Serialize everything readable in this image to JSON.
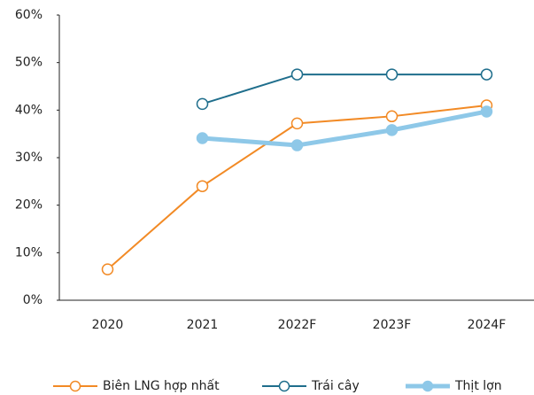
{
  "chart_data": {
    "type": "line",
    "categories": [
      "2020",
      "2021",
      "2022F",
      "2023F",
      "2024F"
    ],
    "series": [
      {
        "name": "Biên LNG hợp nhất",
        "color": "#f28a25",
        "marker_fill": "#ffffff",
        "line_width": 2,
        "values": [
          6.5,
          24.0,
          37.2,
          38.7,
          41.0
        ]
      },
      {
        "name": "Trái cây",
        "color": "#1f6e8c",
        "marker_fill": "#ffffff",
        "line_width": 2,
        "values": [
          null,
          41.3,
          47.5,
          47.5,
          47.5
        ]
      },
      {
        "name": "Thịt lợn",
        "color": "#8ec8e8",
        "marker_fill": "#8ec8e8",
        "line_width": 5,
        "values": [
          null,
          34.1,
          32.6,
          35.8,
          39.7
        ]
      }
    ],
    "ylim": [
      0,
      60
    ],
    "yticks": [
      {
        "value": 0,
        "label": "0%"
      },
      {
        "value": 10,
        "label": "10%"
      },
      {
        "value": 20,
        "label": "20%"
      },
      {
        "value": 30,
        "label": "30%"
      },
      {
        "value": 40,
        "label": "40%"
      },
      {
        "value": 50,
        "label": "50%"
      },
      {
        "value": 60,
        "label": "60%"
      }
    ],
    "legend": "bottom"
  }
}
